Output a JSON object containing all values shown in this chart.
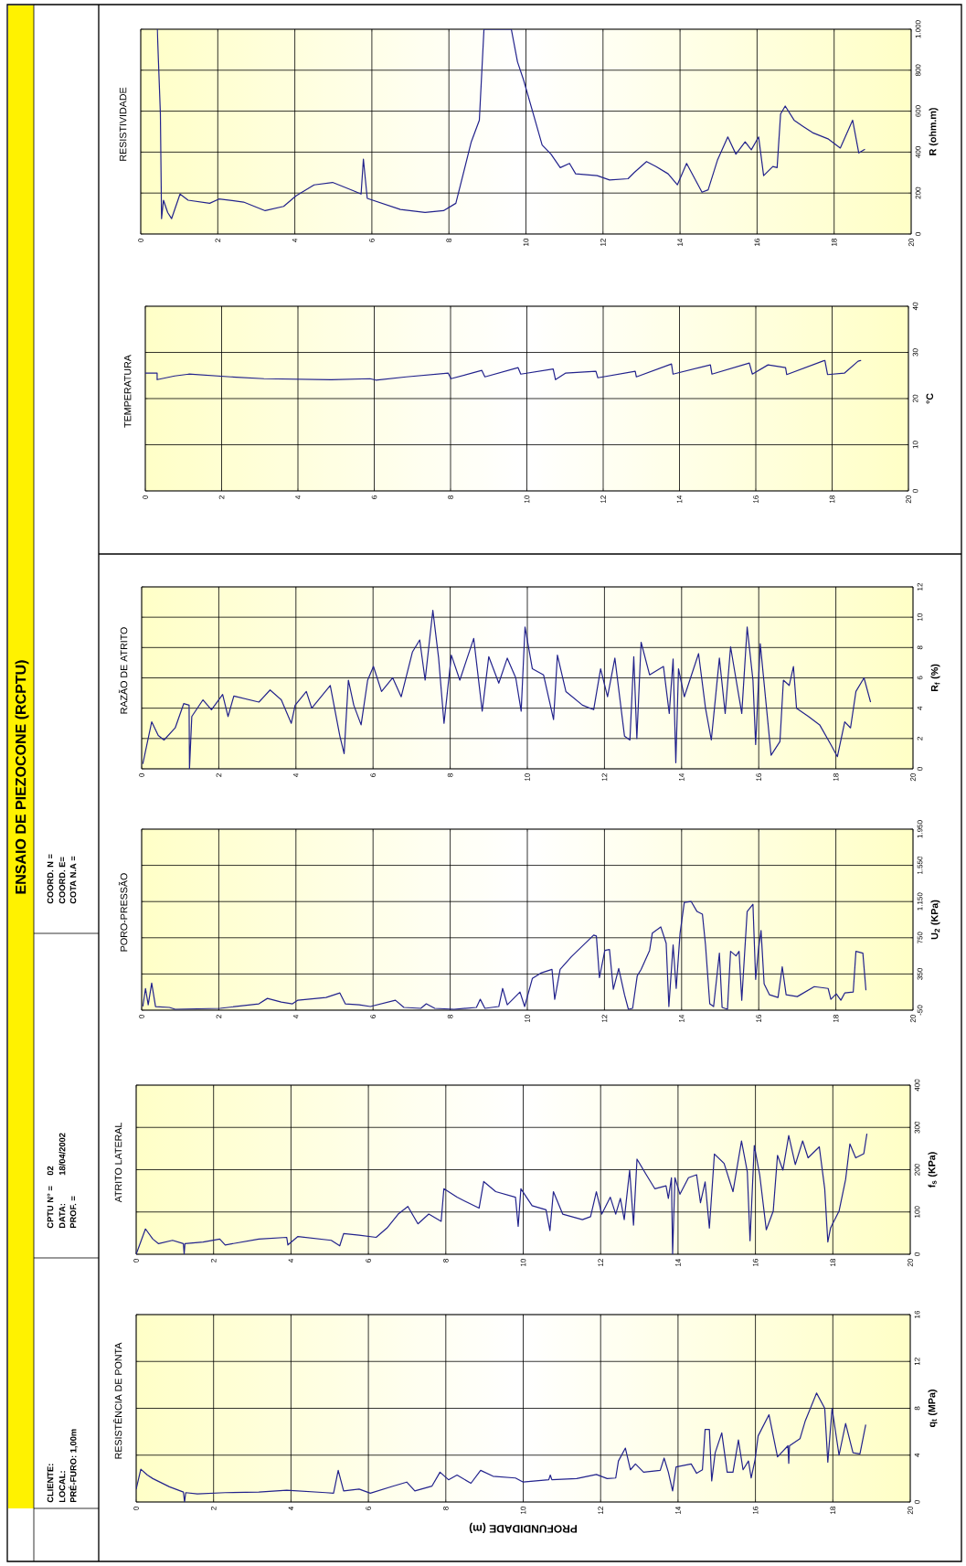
{
  "chart_data": [
    {
      "type": "line",
      "title": "RESISTÊNCIA DE PONTA",
      "xlabel": "PROFUNDIDADE (m)",
      "ylabel": "q$_{t}$ (MPa)",
      "xlim": [
        0,
        20
      ],
      "xticks": [
        0,
        2,
        4,
        6,
        8,
        10,
        12,
        14,
        16,
        18,
        20
      ],
      "ylim": [
        0,
        16
      ],
      "yticks": [
        0,
        4,
        8,
        12,
        16
      ],
      "grid": true,
      "color": "#22228c",
      "annotations": [
        "ENSAIO DE PIEZOCONE (RCPTU)",
        "CLIENTE:",
        "LOCAL:",
        "PRÉ-FURO: 1,00m",
        "CPTU N° =",
        "02",
        "DATA:",
        "18/04/2002",
        "PROF. =",
        "COORD. N =",
        "COORD. E=",
        "COTA N.A ="
      ],
      "x": [
        0,
        0.12,
        0.29,
        0.43,
        0.86,
        1.22,
        1.25,
        1.28,
        1.58,
        2.3,
        3.17,
        3.89,
        4.9,
        5.1,
        5.22,
        5.36,
        5.76,
        6.05,
        6.63,
        6.99,
        7.2,
        7.64,
        7.85,
        8.07,
        8.29,
        8.65,
        8.9,
        9.22,
        9.8,
        10.0,
        10.66,
        10.7,
        10.74,
        11.38,
        11.89,
        12.17,
        12.39,
        12.46,
        12.64,
        12.77,
        12.9,
        13.11,
        13.54,
        13.64,
        13.75,
        13.86,
        13.95,
        14.34,
        14.48,
        14.63,
        14.7,
        14.81,
        14.87,
        14.96,
        15.13,
        15.27,
        15.42,
        15.56,
        15.68,
        15.82,
        15.89,
        15.99,
        16.07,
        16.35,
        16.57,
        16.84,
        16.86,
        16.88,
        17.15,
        17.29,
        17.58,
        17.79,
        17.87,
        17.98,
        18.16,
        18.33,
        18.52,
        18.7,
        18.85
      ],
      "values": [
        1.1,
        2.8,
        2.3,
        2.0,
        1.3,
        0.85,
        0,
        0.8,
        0.7,
        0.8,
        0.85,
        1.0,
        0.8,
        0.75,
        2.7,
        0.95,
        1.1,
        0.75,
        1.35,
        1.7,
        0.95,
        1.35,
        2.55,
        1.9,
        2.3,
        1.6,
        2.7,
        2.2,
        2.05,
        1.7,
        1.9,
        2.3,
        1.9,
        2.0,
        2.35,
        2.0,
        2.05,
        3.5,
        4.6,
        2.75,
        3.25,
        2.55,
        2.7,
        3.75,
        2.55,
        0.95,
        3.0,
        3.25,
        2.45,
        2.75,
        6.2,
        6.2,
        1.8,
        4.2,
        5.9,
        2.55,
        2.55,
        5.3,
        2.75,
        3.5,
        2.05,
        3.6,
        5.65,
        7.45,
        3.85,
        4.8,
        3.3,
        4.8,
        5.4,
        6.95,
        9.3,
        8.0,
        3.4,
        8.0,
        4.0,
        6.7,
        4.2,
        4.1,
        6.6
      ]
    },
    {
      "type": "line",
      "title": "ATRITO LATERAL",
      "ylabel": "f$_{s}$ (KPa)",
      "xlim": [
        0,
        20
      ],
      "xticks": [
        0,
        2,
        4,
        6,
        8,
        10,
        12,
        14,
        16,
        18,
        20
      ],
      "ylim": [
        0,
        400
      ],
      "yticks": [
        0,
        100,
        200,
        300,
        400
      ],
      "grid": true,
      "color": "#22228c",
      "x": [
        0,
        0.24,
        0.43,
        0.58,
        0.94,
        1.22,
        1.24,
        1.26,
        1.73,
        2.16,
        2.3,
        3.17,
        3.89,
        3.92,
        4.18,
        5.04,
        5.26,
        5.36,
        5.76,
        6.2,
        6.48,
        6.77,
        7.02,
        7.28,
        7.56,
        7.88,
        7.95,
        8.29,
        8.57,
        8.86,
        8.98,
        9.29,
        9.8,
        9.87,
        9.94,
        10.23,
        10.59,
        10.69,
        10.78,
        11.02,
        11.53,
        11.74,
        11.89,
        12.03,
        12.25,
        12.39,
        12.51,
        12.61,
        12.75,
        12.85,
        12.94,
        13.18,
        13.4,
        13.69,
        13.75,
        13.83,
        13.86,
        13.92,
        14.05,
        14.27,
        14.48,
        14.58,
        14.7,
        14.81,
        14.94,
        15.19,
        15.42,
        15.64,
        15.79,
        15.86,
        15.97,
        16.11,
        16.28,
        16.46,
        16.57,
        16.71,
        16.86,
        17.03,
        17.22,
        17.36,
        17.65,
        17.79,
        17.87,
        17.94,
        18.16,
        18.33,
        18.44,
        18.59,
        18.8,
        18.88
      ],
      "values": [
        0,
        60,
        36,
        25,
        33,
        25,
        0,
        25,
        29,
        36,
        22,
        36,
        40,
        22,
        42,
        33,
        20,
        49,
        45,
        40,
        62,
        95,
        113,
        72,
        95,
        78,
        155,
        135,
        122,
        109,
        172,
        148,
        135,
        66,
        155,
        115,
        105,
        56,
        148,
        95,
        82,
        89,
        148,
        95,
        135,
        95,
        132,
        82,
        199,
        69,
        225,
        188,
        155,
        162,
        132,
        181,
        0,
        181,
        142,
        181,
        188,
        122,
        171,
        62,
        237,
        215,
        148,
        268,
        195,
        32,
        257,
        188,
        58,
        102,
        234,
        199,
        281,
        212,
        268,
        228,
        254,
        155,
        29,
        62,
        102,
        177,
        261,
        228,
        238,
        285
      ]
    },
    {
      "type": "line",
      "title": "PORO-PRESSÃO",
      "ylabel": "U$_{2}$ (KPa)",
      "xlim": [
        0,
        20
      ],
      "xticks": [
        0,
        2,
        4,
        6,
        8,
        10,
        12,
        14,
        16,
        18,
        20
      ],
      "ylim": [
        -50,
        1950
      ],
      "yticks": [
        -50,
        350,
        750,
        {
          "value": 1150,
          "label": "1.150"
        },
        {
          "value": 1550,
          "label": "1.550"
        },
        {
          "value": 1950,
          "label": "1.950"
        }
      ],
      "grid": true,
      "color": "#22228c",
      "x": [
        0.03,
        0.1,
        0.17,
        0.26,
        0.36,
        0.72,
        0.87,
        2.03,
        3.04,
        3.26,
        3.62,
        3.91,
        4.05,
        4.78,
        5.14,
        5.28,
        5.64,
        5.93,
        6.58,
        6.8,
        7.24,
        7.38,
        7.6,
        8.1,
        8.68,
        8.78,
        8.9,
        9.26,
        9.36,
        9.48,
        9.81,
        9.93,
        10.13,
        10.35,
        10.64,
        10.71,
        10.85,
        11.14,
        11.72,
        11.79,
        11.87,
        12.01,
        12.13,
        12.23,
        12.37,
        12.52,
        12.62,
        12.73,
        12.85,
        12.95,
        13.17,
        13.24,
        13.46,
        13.6,
        13.67,
        13.78,
        13.86,
        13.96,
        14.07,
        14.25,
        14.4,
        14.54,
        14.62,
        14.73,
        14.83,
        14.98,
        15.05,
        15.19,
        15.27,
        15.41,
        15.49,
        15.56,
        15.7,
        15.85,
        15.92,
        15.99,
        16.06,
        16.14,
        16.28,
        16.5,
        16.61,
        16.71,
        17.0,
        17.44,
        17.8,
        17.87,
        18.01,
        18.13,
        18.23,
        18.45,
        18.52,
        18.7,
        18.78
      ],
      "values": [
        -10,
        190,
        10,
        250,
        -10,
        -20,
        -40,
        -30,
        20,
        80,
        40,
        20,
        60,
        90,
        140,
        20,
        10,
        -10,
        60,
        -20,
        -30,
        20,
        -30,
        -40,
        -20,
        70,
        -30,
        -10,
        190,
        10,
        150,
        -10,
        300,
        360,
        400,
        70,
        400,
        540,
        780,
        770,
        310,
        610,
        620,
        180,
        410,
        120,
        -40,
        -30,
        330,
        400,
        610,
        800,
        870,
        690,
        -10,
        670,
        190,
        800,
        1140,
        1150,
        1040,
        1010,
        670,
        20,
        -10,
        580,
        -20,
        -40,
        600,
        550,
        600,
        60,
        1040,
        1120,
        290,
        610,
        830,
        240,
        120,
        90,
        430,
        120,
        100,
        210,
        190,
        70,
        130,
        60,
        140,
        150,
        600,
        580,
        170
      ]
    },
    {
      "type": "line",
      "title": "RAZÃO DE ATRITO",
      "ylabel": "R$_{f}$ (%)",
      "xlim": [
        0,
        20
      ],
      "xticks": [
        0,
        2,
        4,
        6,
        8,
        10,
        12,
        14,
        16,
        18,
        20
      ],
      "ylim": [
        0,
        12
      ],
      "yticks": [
        0,
        2,
        4,
        6,
        8,
        10,
        12
      ],
      "grid": true,
      "color": "#22228c",
      "x": [
        0.03,
        0.26,
        0.43,
        0.58,
        0.87,
        1.09,
        1.23,
        1.24,
        1.3,
        1.59,
        1.81,
        2.1,
        2.24,
        2.39,
        3.04,
        3.33,
        3.62,
        3.88,
        3.98,
        4.27,
        4.41,
        4.89,
        5.14,
        5.25,
        5.36,
        5.5,
        5.69,
        5.86,
        6.01,
        6.22,
        6.51,
        6.73,
        7.02,
        7.21,
        7.35,
        7.55,
        7.7,
        7.84,
        8.03,
        8.25,
        8.61,
        8.83,
        9.0,
        9.26,
        9.48,
        9.7,
        9.84,
        9.94,
        10.13,
        10.42,
        10.68,
        10.78,
        11.0,
        11.43,
        11.72,
        11.9,
        12.08,
        12.27,
        12.52,
        12.66,
        12.76,
        12.84,
        12.95,
        13.17,
        13.53,
        13.68,
        13.78,
        13.85,
        13.92,
        14.07,
        14.44,
        14.62,
        14.77,
        14.98,
        15.13,
        15.27,
        15.56,
        15.7,
        15.85,
        15.92,
        16.04,
        16.32,
        16.55,
        16.64,
        16.79,
        16.9,
        16.98,
        17.29,
        17.58,
        17.87,
        18.04,
        18.23,
        18.38,
        18.52,
        18.73,
        18.9
      ],
      "values": [
        0.33,
        3.1,
        2.2,
        1.9,
        2.7,
        4.3,
        4.2,
        0,
        3.45,
        4.55,
        3.9,
        4.9,
        3.45,
        4.8,
        4.4,
        5.2,
        4.55,
        3.0,
        4.2,
        5.1,
        4.0,
        5.5,
        2.15,
        1.0,
        5.85,
        4.2,
        2.9,
        5.85,
        6.75,
        5.1,
        6.0,
        4.75,
        7.7,
        8.5,
        5.85,
        10.45,
        7.3,
        3.0,
        7.5,
        5.85,
        8.6,
        3.8,
        7.4,
        5.65,
        7.3,
        6.0,
        3.8,
        9.35,
        6.6,
        6.2,
        3.25,
        7.5,
        5.1,
        4.2,
        3.9,
        6.6,
        4.75,
        7.3,
        2.15,
        1.9,
        7.4,
        2.0,
        8.35,
        6.2,
        6.75,
        3.65,
        7.25,
        0.4,
        6.6,
        4.75,
        7.6,
        4.0,
        1.9,
        7.3,
        3.65,
        8.05,
        3.65,
        9.35,
        5.85,
        1.6,
        8.25,
        0.9,
        1.8,
        5.85,
        5.5,
        6.75,
        4.0,
        3.45,
        2.9,
        1.6,
        0.8,
        3.1,
        2.7,
        5.1,
        6.0,
        4.4
      ]
    },
    {
      "type": "line",
      "title": "TEMPERATURA",
      "ylabel": "°C",
      "xlim": [
        0,
        20
      ],
      "xticks": [
        0,
        2,
        4,
        6,
        8,
        10,
        12,
        14,
        16,
        18,
        20
      ],
      "ylim": [
        0,
        40
      ],
      "yticks": [
        0,
        10,
        20,
        30,
        40
      ],
      "grid": true,
      "color": "#22228c",
      "x": [
        0,
        0.31,
        0.31,
        0.77,
        1.14,
        2.24,
        3.11,
        4.87,
        5.89,
        6.04,
        6.84,
        7.94,
        8.01,
        8.82,
        8.9,
        9.77,
        9.84,
        10.69,
        10.75,
        11.01,
        11.81,
        11.86,
        12.84,
        12.87,
        13.79,
        13.83,
        14.81,
        14.85,
        15.83,
        15.91,
        16.32,
        16.78,
        16.81,
        17.81,
        17.88,
        18.32,
        18.68,
        18.76
      ],
      "values": [
        25.5,
        25.5,
        24.1,
        24.9,
        25.3,
        24.7,
        24.3,
        24.1,
        24.3,
        24.0,
        24.7,
        25.5,
        24.3,
        26.1,
        24.7,
        26.7,
        25.3,
        26.4,
        24.1,
        25.5,
        25.9,
        24.5,
        25.9,
        24.7,
        27.5,
        25.3,
        27.3,
        25.3,
        27.7,
        25.3,
        27.3,
        26.7,
        25.2,
        28.3,
        25.2,
        25.5,
        28.1,
        28.3
      ]
    },
    {
      "type": "line",
      "title": "RESISTIVIDADE",
      "ylabel": "R (ohm.m)",
      "xlim": [
        0,
        20
      ],
      "xticks": [
        0,
        2,
        4,
        6,
        8,
        10,
        12,
        14,
        16,
        18,
        20
      ],
      "ylim": [
        0,
        1000
      ],
      "yticks": [
        0,
        200,
        400,
        600,
        800,
        {
          "value": 1000,
          "label": "1.000"
        }
      ],
      "grid": true,
      "color": "#22228c",
      "x": [
        0.43,
        0.46,
        0.51,
        0.54,
        0.59,
        0.7,
        0.8,
        1.02,
        1.23,
        1.79,
        2.03,
        2.67,
        3.23,
        3.71,
        4.03,
        4.5,
        4.98,
        5.54,
        5.72,
        5.78,
        5.88,
        6.74,
        7.38,
        7.86,
        8.18,
        8.58,
        8.79,
        8.91,
        9.62,
        9.78,
        9.94,
        10.26,
        10.42,
        10.65,
        10.89,
        11.13,
        11.29,
        11.85,
        12.17,
        12.65,
        12.81,
        13.13,
        13.37,
        13.69,
        13.93,
        14.17,
        14.57,
        14.73,
        14.97,
        15.24,
        15.45,
        15.69,
        15.85,
        16.04,
        16.17,
        16.41,
        16.52,
        16.61,
        16.73,
        16.96,
        17.2,
        17.44,
        17.84,
        18.16,
        18.48,
        18.64,
        18.8
      ],
      "values": [
        1000,
        841,
        586,
        75,
        165,
        105,
        75,
        195,
        165,
        150,
        171,
        156,
        114,
        135,
        186,
        240,
        252,
        210,
        195,
        366,
        174,
        120,
        105,
        114,
        150,
        450,
        556,
        1000,
        1000,
        841,
        751,
        541,
        435,
        390,
        324,
        345,
        294,
        285,
        264,
        270,
        300,
        354,
        330,
        294,
        240,
        345,
        204,
        216,
        360,
        474,
        390,
        450,
        411,
        474,
        285,
        330,
        324,
        586,
        625,
        556,
        525,
        495,
        465,
        420,
        556,
        396,
        414
      ]
    }
  ]
}
